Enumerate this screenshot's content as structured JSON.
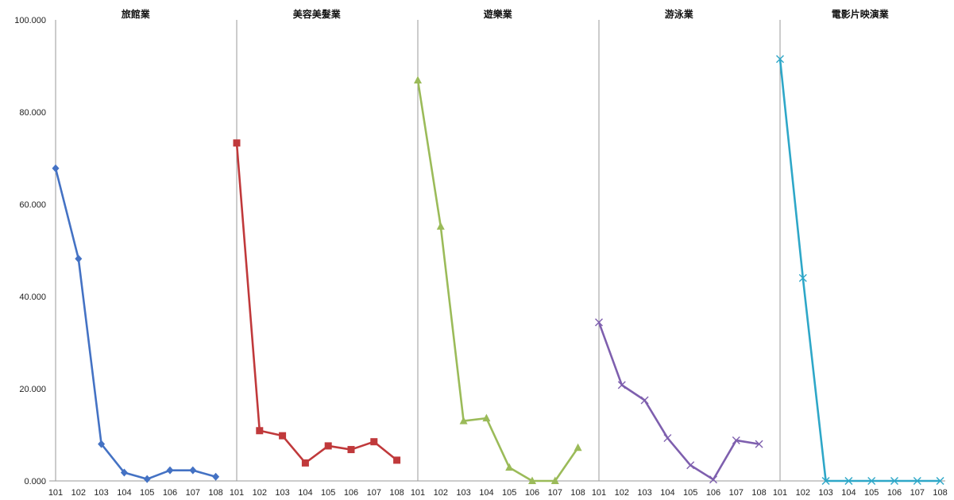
{
  "chart_data": {
    "type": "line",
    "ylim": [
      0,
      100
    ],
    "y_ticks": [
      "0.000",
      "20.000",
      "40.000",
      "60.000",
      "80.000",
      "100.000"
    ],
    "categories": [
      "101",
      "102",
      "103",
      "104",
      "105",
      "106",
      "107",
      "108"
    ],
    "grid": false,
    "panels": [
      {
        "name": "旅館業",
        "color": "#4472C4",
        "marker": "diamond",
        "values": [
          67.8,
          48.2,
          8.0,
          1.8,
          0.4,
          2.3,
          2.3,
          0.9
        ]
      },
      {
        "name": "美容美髮業",
        "color": "#C0393B",
        "marker": "square",
        "values": [
          73.3,
          10.9,
          9.8,
          3.9,
          7.6,
          6.8,
          8.5,
          4.5
        ]
      },
      {
        "name": "遊樂業",
        "color": "#9BBB59",
        "marker": "triangle",
        "values": [
          86.9,
          55.2,
          13.0,
          13.6,
          2.9,
          0.0,
          0.0,
          7.2
        ]
      },
      {
        "name": "游泳業",
        "color": "#7E5FAE",
        "marker": "x",
        "values": [
          34.4,
          20.8,
          17.5,
          9.3,
          3.4,
          0.3,
          8.8,
          8.0
        ]
      },
      {
        "name": "電影片映演業",
        "color": "#2EA7C8",
        "marker": "x",
        "values": [
          91.5,
          44.0,
          0.0,
          0.0,
          0.0,
          0.0,
          0.0,
          0.0
        ]
      }
    ]
  }
}
